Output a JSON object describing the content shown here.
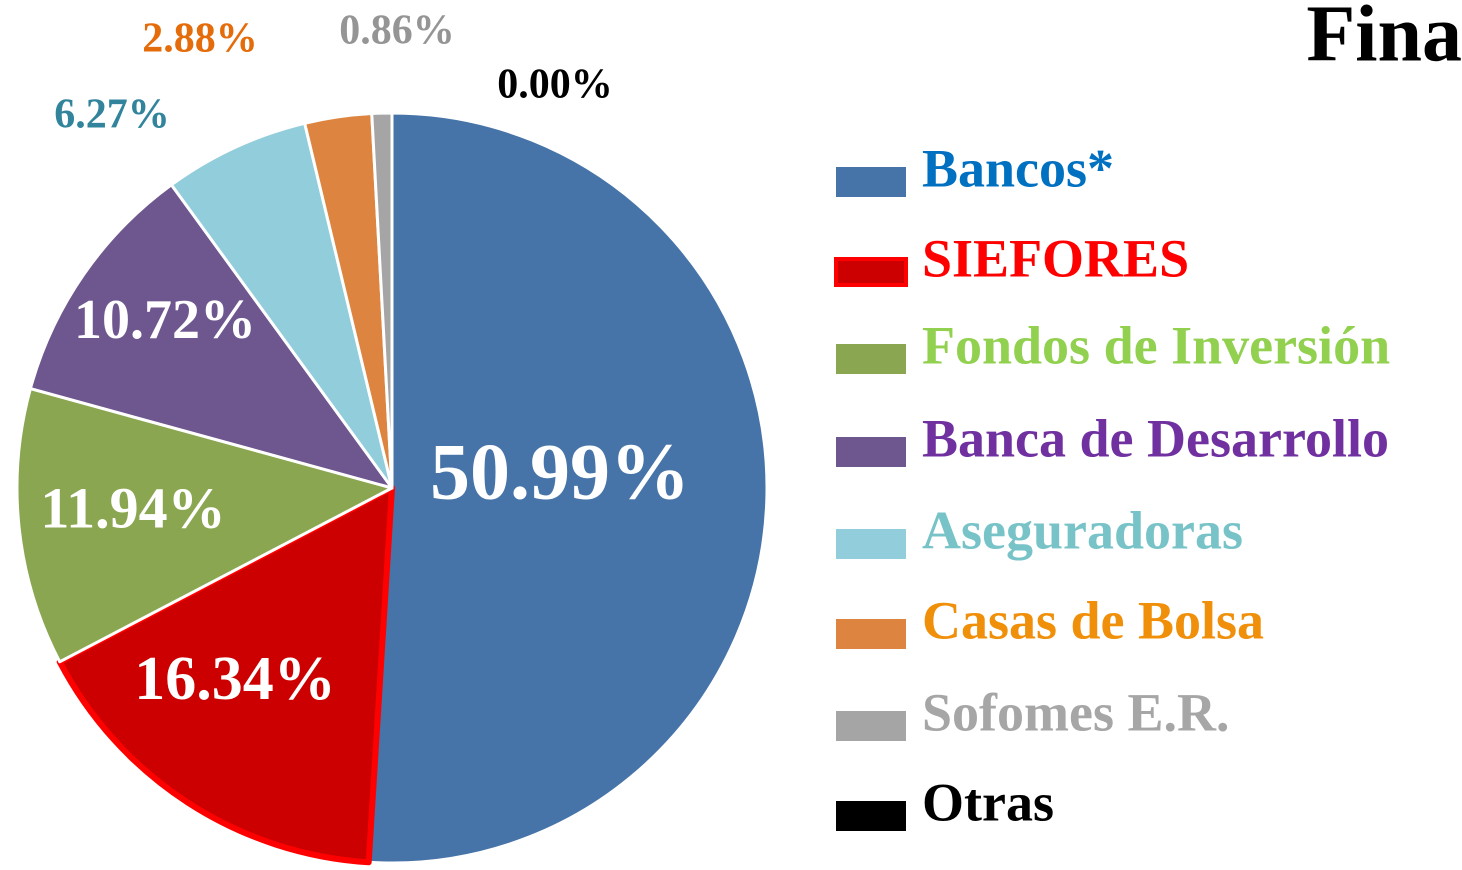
{
  "chart_data": {
    "type": "pie",
    "title": "Fina",
    "categories": [
      "Bancos*",
      "SIEFORES",
      "Fondos de Inversión",
      "Banca de Desarrollo",
      "Aseguradoras",
      "Casas de Bolsa",
      "Sofomes E.R.",
      "Otras"
    ],
    "values": [
      50.99,
      16.34,
      11.94,
      10.72,
      6.27,
      2.88,
      0.86,
      0.0
    ],
    "value_labels": [
      "50.99%",
      "16.34%",
      "11.94%",
      "10.72%",
      "6.27%",
      "2.88%",
      "0.86%",
      "0.00%"
    ],
    "colors": [
      "#4674a8",
      "#cc0000",
      "#8ba650",
      "#6e568e",
      "#92cddc",
      "#dd8540",
      "#a5a5a5",
      "#000000"
    ],
    "label_colors": [
      "#ffffff",
      "#ffffff",
      "#ffffff",
      "#ffffff",
      "#31849b",
      "#e46c0a",
      "#959595",
      "#000000"
    ],
    "legend_text_colors": [
      "#0070c0",
      "#ff0000",
      "#92d050",
      "#7030a0",
      "#77c3c8",
      "#f0900a",
      "#a6a6a6",
      "#000000"
    ]
  }
}
